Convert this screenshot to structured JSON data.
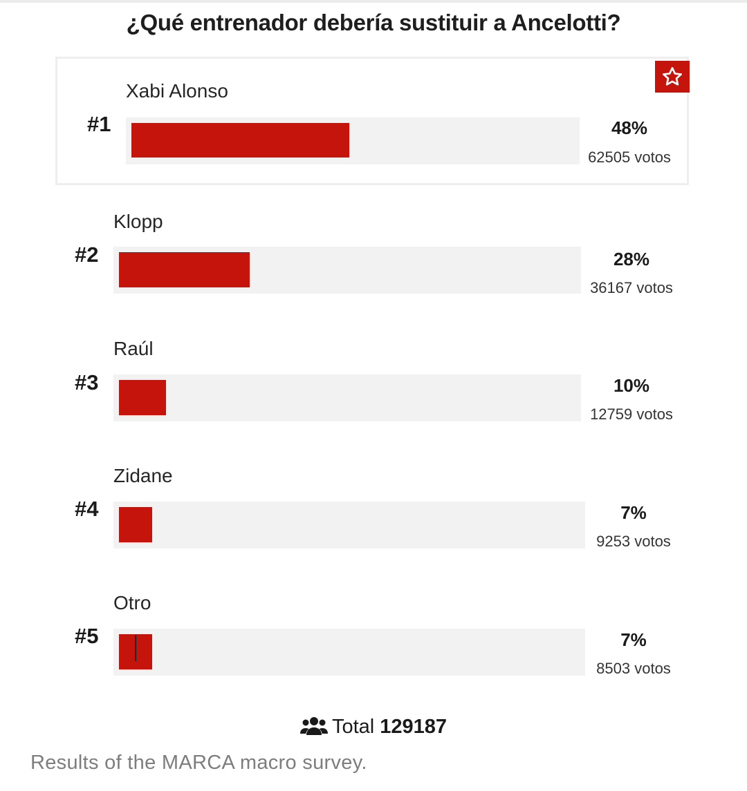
{
  "poll": {
    "question": "¿Qué entrenador debería sustituir a Ancelotti?",
    "total_label": "Total",
    "total_votes": "129187",
    "caption": "Results of the MARCA macro survey."
  },
  "colors": {
    "bar": "#c4140c",
    "track": "#f2f2f2",
    "accent": "#c4140c"
  },
  "chart_data": {
    "type": "bar",
    "orientation": "horizontal",
    "title": "¿Qué entrenador debería sustituir a Ancelotti?",
    "categories": [
      "Xabi Alonso",
      "Klopp",
      "Raúl",
      "Zidane",
      "Otro"
    ],
    "ranks": [
      "#1",
      "#2",
      "#3",
      "#4",
      "#5"
    ],
    "values": [
      48,
      28,
      10,
      7,
      7
    ],
    "percent_labels": [
      "48%",
      "28%",
      "10%",
      "7%",
      "7%"
    ],
    "votes": [
      62505,
      36167,
      12759,
      9253,
      8503
    ],
    "vote_labels": [
      "62505 votos",
      "36167 votos",
      "12759 votos",
      "9253 votos",
      "8503 votos"
    ],
    "xlim": [
      0,
      100
    ],
    "xlabel": "",
    "ylabel": ""
  }
}
